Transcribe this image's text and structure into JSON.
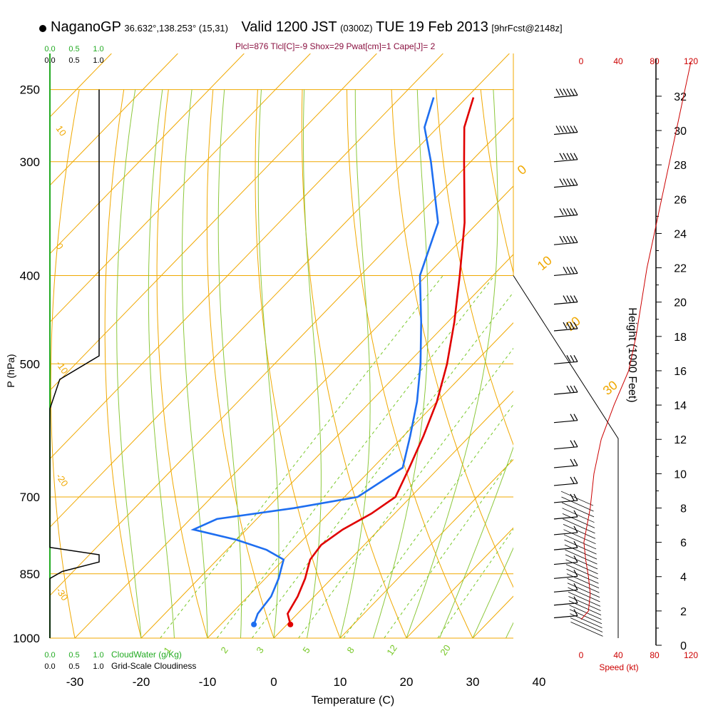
{
  "header": {
    "station": "NaganoGP",
    "coords": "36.632°,138.253° (15,31)",
    "valid": "Valid 1200 JST",
    "zulu": "(0300Z)",
    "date": "TUE 19 Feb 2013",
    "fcst": "[9hrFcst@2148z]",
    "indices": "Plcl=876 Tlcl[C]=-9 Shox=29 Pwat[cm]=1 Cape[J]= 2"
  },
  "colors": {
    "temperature": "#e00000",
    "dewpoint": "#1e6ef0",
    "isotherm_isobar": "#f0a800",
    "dry_adiabat": "#8cc83c",
    "mixing_ratio": "#78c828",
    "cloud": "#000000",
    "speed": "#cc0000",
    "cloudwater_label": "#22aa22"
  },
  "chart_data": {
    "type": "skew-t",
    "xlabel": "Temperature (C)",
    "ylabel": "P (hPa)",
    "right_label": "Height (1000 Feet)",
    "x_ticks": [
      -30,
      -20,
      -10,
      0,
      10,
      20,
      30,
      40
    ],
    "pressure_ticks": [
      250,
      300,
      400,
      500,
      700,
      850,
      1000
    ],
    "height_ticks": [
      0,
      2,
      4,
      6,
      8,
      10,
      12,
      14,
      16,
      18,
      20,
      22,
      24,
      26,
      28,
      30,
      32
    ],
    "mixing_ratio_labels": [
      "1",
      "2",
      "3",
      "5",
      "8",
      "12",
      "20"
    ],
    "dry_adiabat_labels": [
      "10",
      "0",
      "-10",
      "-20",
      "-30"
    ],
    "theta_e_labels": [
      "0",
      "10",
      "20",
      "30"
    ],
    "cloud_axis_top_green": [
      "0.0",
      "0.5",
      "1.0"
    ],
    "cloud_axis_top_black": [
      "0.0",
      "0.5",
      "1.0"
    ],
    "cloud_axis_bottom_green": [
      "0.0",
      "0.5",
      "1.0"
    ],
    "cloud_axis_bottom_black": [
      "0.0",
      "0.5",
      "1.0"
    ],
    "cloudwater_label": "CloudWater (g/Kg)",
    "cloudiness_label": "Grid-Scale Cloudiness",
    "speed_ticks_top": [
      "0",
      "40",
      "80",
      "120"
    ],
    "speed_ticks_bottom": [
      "0",
      "40",
      "80",
      "120"
    ],
    "speed_label": "Speed (kt)",
    "temperature_profile": [
      {
        "p": 966,
        "t": 0.5
      },
      {
        "p": 940,
        "t": -1.5
      },
      {
        "p": 900,
        "t": -2.5
      },
      {
        "p": 860,
        "t": -4
      },
      {
        "p": 840,
        "t": -5
      },
      {
        "p": 820,
        "t": -6
      },
      {
        "p": 790,
        "t": -6.5
      },
      {
        "p": 760,
        "t": -5.5
      },
      {
        "p": 730,
        "t": -3.5
      },
      {
        "p": 700,
        "t": -2.3
      },
      {
        "p": 650,
        "t": -4.5
      },
      {
        "p": 600,
        "t": -7
      },
      {
        "p": 550,
        "t": -10
      },
      {
        "p": 500,
        "t": -14
      },
      {
        "p": 450,
        "t": -19
      },
      {
        "p": 400,
        "t": -25
      },
      {
        "p": 350,
        "t": -32
      },
      {
        "p": 300,
        "t": -41
      },
      {
        "p": 275,
        "t": -46
      },
      {
        "p": 255,
        "t": -49
      }
    ],
    "dewpoint_profile": [
      {
        "p": 966,
        "t": -5
      },
      {
        "p": 940,
        "t": -6
      },
      {
        "p": 900,
        "t": -6.5
      },
      {
        "p": 860,
        "t": -8
      },
      {
        "p": 840,
        "t": -9
      },
      {
        "p": 820,
        "t": -10
      },
      {
        "p": 800,
        "t": -14
      },
      {
        "p": 780,
        "t": -20
      },
      {
        "p": 760,
        "t": -28
      },
      {
        "p": 740,
        "t": -26
      },
      {
        "p": 720,
        "t": -16
      },
      {
        "p": 700,
        "t": -8
      },
      {
        "p": 650,
        "t": -5.5
      },
      {
        "p": 600,
        "t": -9
      },
      {
        "p": 550,
        "t": -13
      },
      {
        "p": 500,
        "t": -18
      },
      {
        "p": 450,
        "t": -24
      },
      {
        "p": 400,
        "t": -31
      },
      {
        "p": 350,
        "t": -36
      },
      {
        "p": 300,
        "t": -46
      },
      {
        "p": 275,
        "t": -52
      },
      {
        "p": 255,
        "t": -55
      }
    ],
    "cloudiness_profile": [
      {
        "p": 1000,
        "v": 0
      },
      {
        "p": 860,
        "v": 0
      },
      {
        "p": 845,
        "v": 0.25
      },
      {
        "p": 825,
        "v": 1.0
      },
      {
        "p": 810,
        "v": 1.0
      },
      {
        "p": 795,
        "v": 0
      },
      {
        "p": 560,
        "v": 0
      },
      {
        "p": 520,
        "v": 0.2
      },
      {
        "p": 490,
        "v": 1.0
      },
      {
        "p": 250,
        "v": 1.0
      }
    ],
    "wind_speed_profile": [
      {
        "h": 1.5,
        "s": 0
      },
      {
        "h": 2,
        "s": 8
      },
      {
        "h": 3,
        "s": 10
      },
      {
        "h": 4,
        "s": 8
      },
      {
        "h": 5,
        "s": 5
      },
      {
        "h": 6,
        "s": 3
      },
      {
        "h": 8,
        "s": 10
      },
      {
        "h": 10,
        "s": 14
      },
      {
        "h": 12,
        "s": 22
      },
      {
        "h": 14,
        "s": 36
      },
      {
        "h": 16,
        "s": 52
      },
      {
        "h": 18,
        "s": 60
      },
      {
        "h": 20,
        "s": 66
      },
      {
        "h": 22,
        "s": 72
      },
      {
        "h": 24,
        "s": 80
      },
      {
        "h": 26,
        "s": 88
      },
      {
        "h": 28,
        "s": 96
      },
      {
        "h": 30,
        "s": 104
      },
      {
        "h": 32,
        "s": 112
      },
      {
        "h": 34,
        "s": 120
      }
    ],
    "wind_barbs": [
      {
        "p": 255,
        "s": 55
      },
      {
        "p": 280,
        "s": 55
      },
      {
        "p": 300,
        "s": 50
      },
      {
        "p": 320,
        "s": 50
      },
      {
        "p": 345,
        "s": 45
      },
      {
        "p": 370,
        "s": 45
      },
      {
        "p": 400,
        "s": 35
      },
      {
        "p": 430,
        "s": 40
      },
      {
        "p": 460,
        "s": 35
      },
      {
        "p": 500,
        "s": 30
      },
      {
        "p": 540,
        "s": 25
      },
      {
        "p": 580,
        "s": 20
      },
      {
        "p": 620,
        "s": 20
      },
      {
        "p": 650,
        "s": 15
      },
      {
        "p": 680,
        "s": 15
      },
      {
        "p": 710,
        "s": 15
      },
      {
        "p": 740,
        "s": 10
      },
      {
        "p": 770,
        "s": 10
      },
      {
        "p": 800,
        "s": 10
      },
      {
        "p": 830,
        "s": 10
      },
      {
        "p": 860,
        "s": 10
      },
      {
        "p": 890,
        "s": 10
      },
      {
        "p": 920,
        "s": 10
      },
      {
        "p": 950,
        "s": 5
      }
    ]
  }
}
